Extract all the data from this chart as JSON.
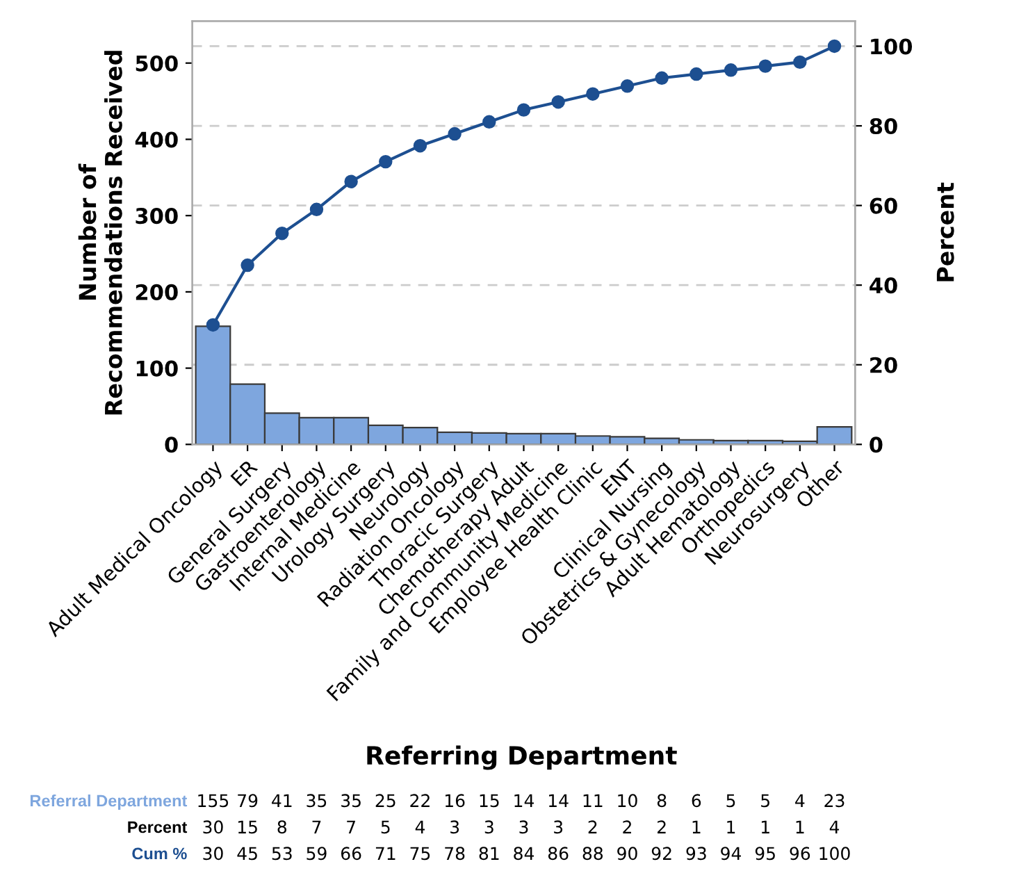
{
  "chart_data": {
    "type": "bar",
    "categories": [
      "Adult Medical Oncology",
      "ER",
      "General Surgery",
      "Gastroenterology",
      "Internal Medicine",
      "Urology Surgery",
      "Neurology",
      "Radiation Oncology",
      "Thoracic Surgery",
      "Chemotherapy Adult",
      "Family and Community Medicine",
      "Employee Health Clinic",
      "ENT",
      "Clinical Nursing",
      "Obstetrics & Gynecology",
      "Adult Hematology",
      "Orthopedics",
      "Neurosurgery",
      "Other"
    ],
    "series": [
      {
        "name": "Referral Department",
        "color": "#7ea6de",
        "values": [
          155,
          79,
          41,
          35,
          35,
          25,
          22,
          16,
          15,
          14,
          14,
          11,
          10,
          8,
          6,
          5,
          5,
          4,
          23
        ]
      },
      {
        "name": "Cum %",
        "type": "line",
        "axis": "y2",
        "color": "#1d4f91",
        "marker": "circle",
        "values": [
          30,
          45,
          53,
          59,
          66,
          71,
          75,
          78,
          81,
          84,
          86,
          88,
          90,
          92,
          93,
          94,
          95,
          96,
          100
        ]
      }
    ],
    "annotations": [
      "Percent",
      "30",
      "15",
      "8",
      "7",
      "7",
      "5",
      "4",
      "3",
      "3",
      "3",
      "3",
      "2",
      "2",
      "2",
      "1",
      "1",
      "1",
      "1",
      "4"
    ],
    "xlabel": "Referring Department",
    "ylabel": "Number of\nRecommendations Received",
    "y2label": "Percent",
    "ylim": [
      0,
      555
    ],
    "yticks": [
      0,
      100,
      200,
      300,
      400,
      500
    ],
    "y2lim": [
      0,
      106.3
    ],
    "y2ticks": [
      0,
      20,
      40,
      60,
      80,
      100
    ],
    "grid": true,
    "data_labels": true,
    "legend": false
  }
}
